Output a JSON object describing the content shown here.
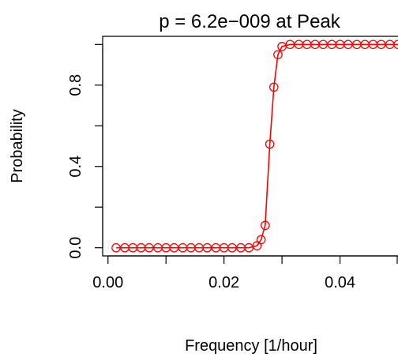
{
  "chart_data": {
    "type": "line",
    "title": "p =  6.2e−009  at Peak",
    "xlabel": "Frequency [1/hour]",
    "ylabel": "Probability",
    "xlim": [
      -0.00092,
      0.05
    ],
    "ylim": [
      -0.04,
      1.04
    ],
    "x_ticks": [
      0.0,
      0.01,
      0.02,
      0.03,
      0.04,
      0.05
    ],
    "x_tick_labels": [
      "0.00",
      "",
      "0.02",
      "",
      "0.04",
      ""
    ],
    "y_ticks": [
      0.0,
      0.2,
      0.4,
      0.6,
      0.8,
      1.0
    ],
    "y_tick_labels": [
      "0.0",
      "",
      "0.4",
      "",
      "0.8",
      ""
    ],
    "grid": false,
    "legend": "none",
    "markers": "open-circle",
    "line_color": "#ff0000",
    "marker_color": "#ff0000",
    "series": [
      {
        "x": [
          0.0014,
          0.0029,
          0.0043,
          0.0057,
          0.0071,
          0.0086,
          0.01,
          0.0114,
          0.0129,
          0.0143,
          0.0157,
          0.0171,
          0.0186,
          0.02,
          0.0214,
          0.0229,
          0.0243,
          0.0257,
          0.0264,
          0.0271,
          0.0279,
          0.0286,
          0.0293,
          0.03,
          0.0314,
          0.0329,
          0.0343,
          0.0357,
          0.0371,
          0.0386,
          0.04,
          0.0414,
          0.0429,
          0.0443,
          0.0457,
          0.0471,
          0.0486,
          0.05
        ],
        "y": [
          0.0,
          0.0,
          0.0,
          0.0,
          0.0,
          0.0,
          0.0,
          0.0,
          0.0,
          0.0,
          0.0,
          0.0,
          0.0,
          0.0,
          0.0,
          0.0,
          0.0,
          0.01,
          0.04,
          0.11,
          0.51,
          0.79,
          0.95,
          0.99,
          1.0,
          1.0,
          1.0,
          1.0,
          1.0,
          1.0,
          1.0,
          1.0,
          1.0,
          1.0,
          1.0,
          1.0,
          1.0,
          1.0
        ]
      }
    ]
  }
}
